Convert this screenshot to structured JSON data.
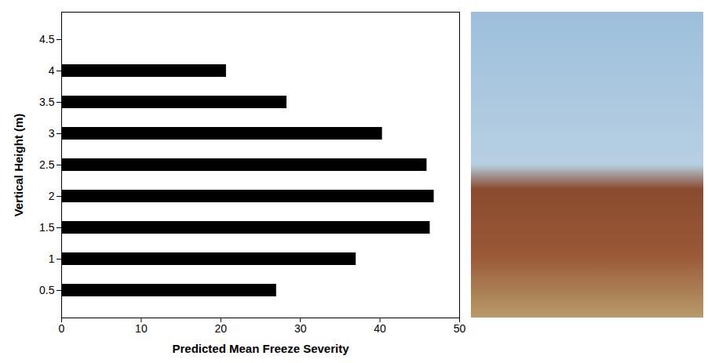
{
  "chart_data": {
    "type": "bar",
    "orientation": "horizontal",
    "xlabel": "Vertical Height (m)",
    "ylabel": "Predicted Mean Freeze Severity",
    "categories": [
      "0.5",
      "1",
      "1.5",
      "2",
      "2.5",
      "3",
      "3.5",
      "4",
      "4.5"
    ],
    "values": [
      27,
      37,
      46.3,
      46.8,
      45.9,
      40.3,
      28.3,
      20.7,
      null
    ],
    "color": "#000000",
    "ylim": [
      0,
      50
    ],
    "yticks": [
      0,
      10,
      20,
      30,
      40,
      50
    ],
    "grid": false
  }
}
